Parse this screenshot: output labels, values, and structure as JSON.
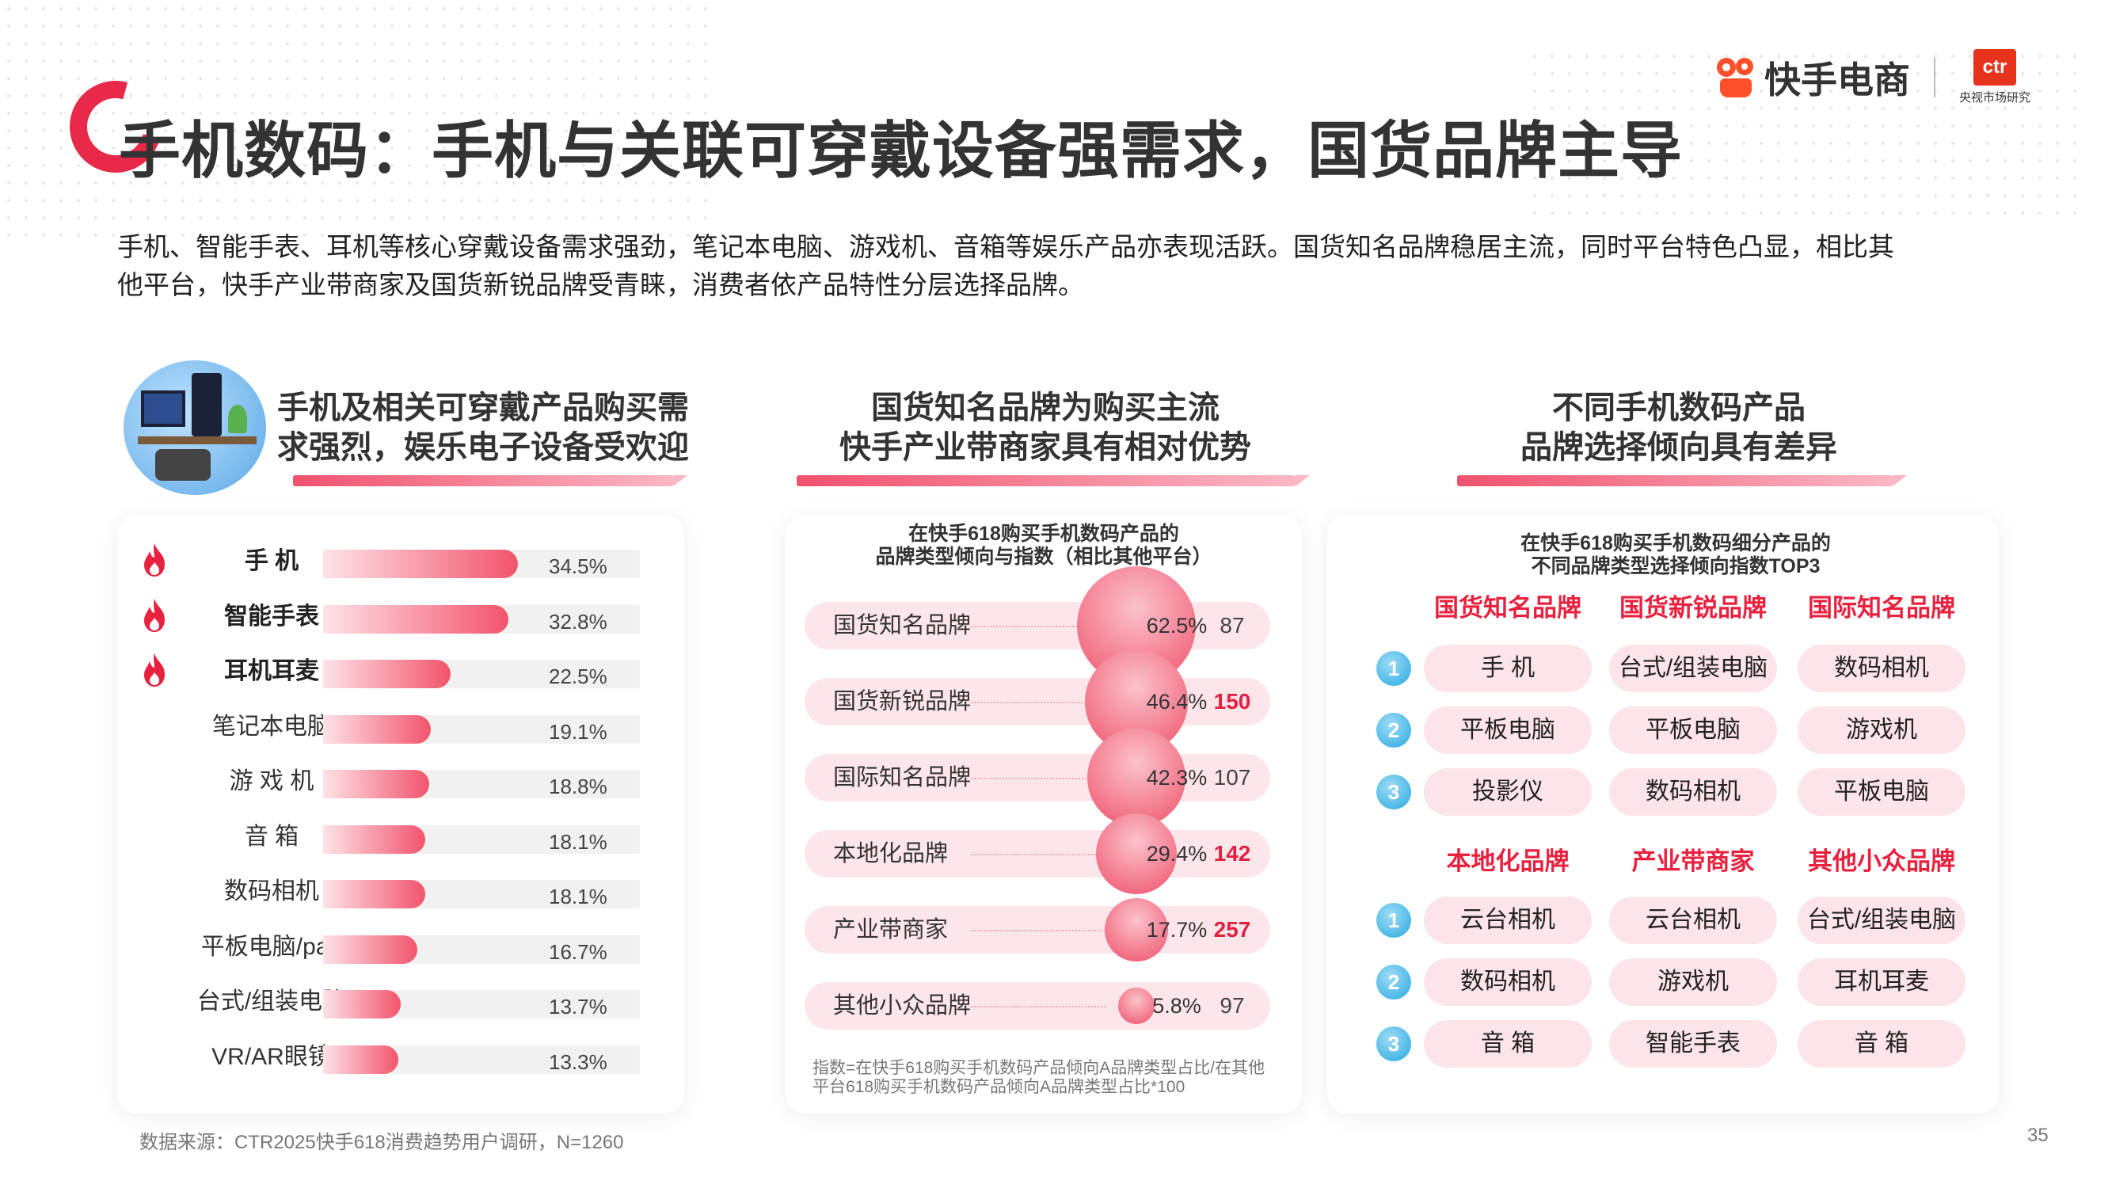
{
  "title": "手机数码：手机与关联可穿戴设备强需求，国货品牌主导",
  "brand": {
    "name": "快手电商",
    "ctr_mark": "ctr",
    "ctr_sub": "央视市场研究"
  },
  "intro_lines": [
    "手机、智能手表、耳机等核心穿戴设备需求强劲，笔记本电脑、游戏机、音箱等娱乐产品亦表现活跃。国货知名品牌稳居主流，同时平台特色凸显，相比其",
    "他平台，快手产业带商家及国货新锐品牌受青睐，消费者依产品特性分层选择品牌。"
  ],
  "col1": {
    "head1": "手机及相关可穿戴产品购买需",
    "head2": "求强烈，娱乐电子设备受欢迎"
  },
  "col2": {
    "head1": "国货知名品牌为购买主流",
    "head2": "快手产业带商家具有相对优势",
    "sub1": "在快手618购买手机数码产品的",
    "sub2": "品牌类型倾向与指数（相比其他平台）",
    "footnote1": "指数=在快手618购买手机数码产品倾向A品牌类型占比/在其他",
    "footnote2": "平台618购买手机数码产品倾向A品牌类型占比*100"
  },
  "col3": {
    "head1": "不同手机数码产品",
    "head2": "品牌选择倾向具有差异",
    "sub1": "在快手618购买手机数码细分产品的",
    "sub2": "不同品牌类型选择倾向指数TOP3",
    "groups_top": [
      "国货知名品牌",
      "国货新锐品牌",
      "国际知名品牌"
    ],
    "groups_bottom": [
      "本地化品牌",
      "产业带商家",
      "其他小众品牌"
    ],
    "ranks": [
      "1",
      "2",
      "3"
    ],
    "top_rows": [
      [
        "手 机",
        "台式/组装电脑",
        "数码相机"
      ],
      [
        "平板电脑",
        "平板电脑",
        "游戏机"
      ],
      [
        "投影仪",
        "数码相机",
        "平板电脑"
      ]
    ],
    "bottom_rows": [
      [
        "云台相机",
        "云台相机",
        "台式/组装电脑"
      ],
      [
        "数码相机",
        "游戏机",
        "耳机耳麦"
      ],
      [
        "音 箱",
        "智能手表",
        "音 箱"
      ]
    ]
  },
  "chart_data": [
    {
      "type": "bar",
      "title": "手机及相关可穿戴产品购买需求强烈，娱乐电子设备受欢迎",
      "categories": [
        "手 机",
        "智能手表",
        "耳机耳麦",
        "笔记本电脑",
        "游 戏 机",
        "音 箱",
        "数码相机",
        "平板电脑/pad",
        "台式/组装电脑",
        "VR/AR眼镜"
      ],
      "values": [
        34.5,
        32.8,
        22.5,
        19.1,
        18.8,
        18.1,
        18.1,
        16.7,
        13.7,
        13.3
      ],
      "value_labels": [
        "34.5%",
        "32.8%",
        "22.5%",
        "19.1%",
        "18.8%",
        "18.1%",
        "18.1%",
        "16.7%",
        "13.7%",
        "13.3%"
      ],
      "highlighted": [
        true,
        true,
        true,
        false,
        false,
        false,
        false,
        false,
        false,
        false
      ],
      "unit": "%",
      "ylim": [
        0,
        100
      ]
    },
    {
      "type": "scatter",
      "title": "在快手618购买手机数码产品的品牌类型倾向与指数（相比其他平台）",
      "categories": [
        "国货知名品牌",
        "国货新锐品牌",
        "国际知名品牌",
        "本地化品牌",
        "产业带商家",
        "其他小众品牌"
      ],
      "share": [
        62.5,
        46.4,
        42.3,
        29.4,
        17.7,
        5.8
      ],
      "share_labels": [
        "62.5%",
        "46.4%",
        "42.3%",
        "29.4%",
        "17.7%",
        "5.8%"
      ],
      "index": [
        87,
        150,
        107,
        142,
        257,
        97
      ],
      "index_highlight": [
        false,
        true,
        false,
        true,
        true,
        false
      ]
    }
  ],
  "colors": {
    "accent": "#e8294a",
    "bar_end": "#f2546d",
    "rank_blue": "#27a9e1",
    "highlight_text": "#e31f42"
  },
  "source": "数据来源：CTR2025快手618消费趋势用户调研，N=1260",
  "page_number": "35"
}
